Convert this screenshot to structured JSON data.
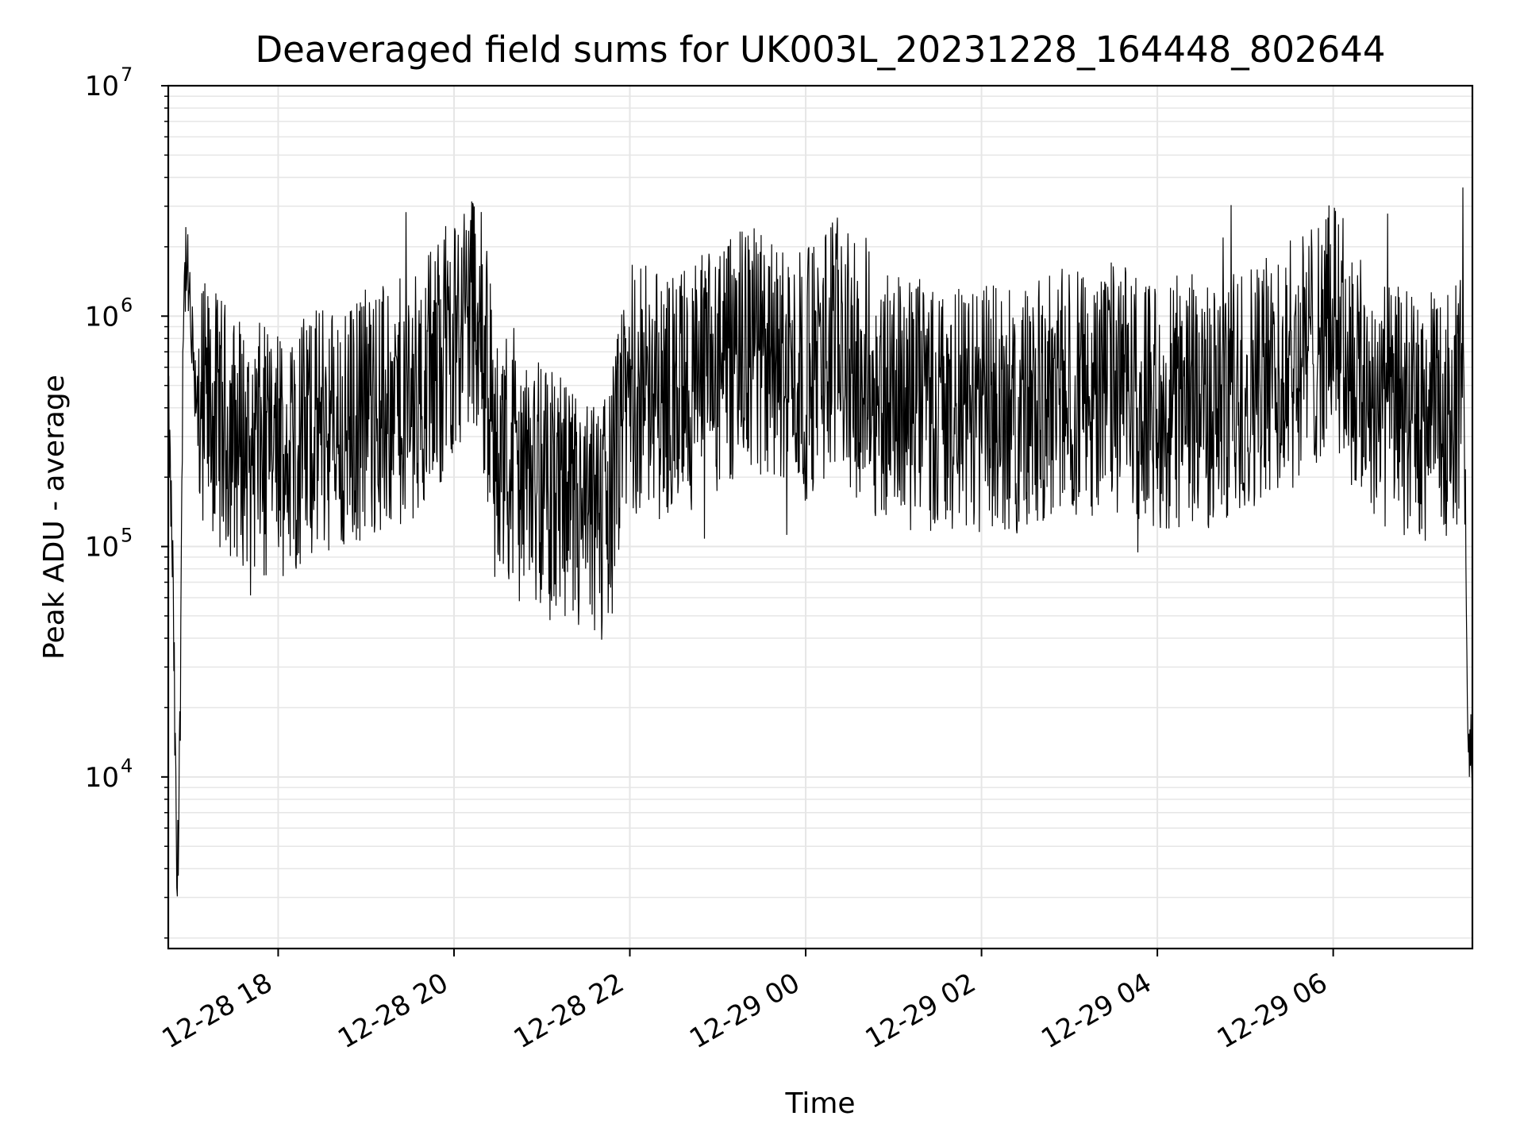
{
  "chart_data": {
    "type": "line",
    "title": "Deaveraged field sums for UK003L_20231228_164448_802644",
    "xlabel": "Time",
    "ylabel": "Peak ADU - average",
    "y_scale": "log",
    "ylim": [
      1800,
      10000000
    ],
    "xlim": [
      "2023-12-28 16:45",
      "2023-12-29 07:35"
    ],
    "grid": true,
    "grid_which": "both",
    "line_color": "#000000",
    "grid_color": "#e6e6e6",
    "x_ticks": [
      {
        "value": "2023-12-28 18:00",
        "label": "12-28 18"
      },
      {
        "value": "2023-12-28 20:00",
        "label": "12-28 20"
      },
      {
        "value": "2023-12-28 22:00",
        "label": "12-28 22"
      },
      {
        "value": "2023-12-29 00:00",
        "label": "12-29 00"
      },
      {
        "value": "2023-12-29 02:00",
        "label": "12-29 02"
      },
      {
        "value": "2023-12-29 04:00",
        "label": "12-29 04"
      },
      {
        "value": "2023-12-29 06:00",
        "label": "12-29 06"
      }
    ],
    "y_ticks": [
      {
        "value": 10000,
        "base": "10",
        "exp": "4"
      },
      {
        "value": 100000,
        "base": "10",
        "exp": "5"
      },
      {
        "value": 1000000,
        "base": "10",
        "exp": "6"
      },
      {
        "value": 10000000,
        "base": "10",
        "exp": "7"
      }
    ],
    "series": [
      {
        "x": [
          "2023-12-28 16:45",
          "2023-12-28 16:48",
          "2023-12-28 16:51",
          "2023-12-28 16:53",
          "2023-12-28 16:55",
          "2023-12-28 16:57",
          "2023-12-28 16:59",
          "2023-12-28 17:02",
          "2023-12-28 17:05",
          "2023-12-28 17:10",
          "2023-12-28 17:20",
          "2023-12-28 17:30",
          "2023-12-28 17:40",
          "2023-12-28 17:50",
          "2023-12-28 18:00",
          "2023-12-28 18:15",
          "2023-12-28 18:30",
          "2023-12-28 18:45",
          "2023-12-28 19:00",
          "2023-12-28 19:15",
          "2023-12-28 19:30",
          "2023-12-28 19:45",
          "2023-12-28 20:00",
          "2023-12-28 20:15",
          "2023-12-28 20:30",
          "2023-12-28 20:45",
          "2023-12-28 21:00",
          "2023-12-28 21:15",
          "2023-12-28 21:30",
          "2023-12-28 21:45",
          "2023-12-28 22:00",
          "2023-12-28 22:20",
          "2023-12-28 22:40",
          "2023-12-28 23:00",
          "2023-12-28 23:20",
          "2023-12-28 23:40",
          "2023-12-28 23:50",
          "2023-12-29 00:00",
          "2023-12-29 00:20",
          "2023-12-29 00:40",
          "2023-12-29 01:00",
          "2023-12-29 01:30",
          "2023-12-29 02:00",
          "2023-12-29 02:30",
          "2023-12-29 03:00",
          "2023-12-29 03:30",
          "2023-12-29 04:00",
          "2023-12-29 04:30",
          "2023-12-29 05:00",
          "2023-12-29 05:30",
          "2023-12-29 05:50",
          "2023-12-29 06:00",
          "2023-12-29 06:20",
          "2023-12-29 06:40",
          "2023-12-29 07:00",
          "2023-12-29 07:15",
          "2023-12-29 07:22",
          "2023-12-29 07:26",
          "2023-12-29 07:29",
          "2023-12-29 07:32",
          "2023-12-29 07:35"
        ],
        "y": [
          400000,
          80000,
          3000,
          15000,
          900000,
          1800000,
          1200000,
          600000,
          450000,
          400000,
          350000,
          300000,
          280000,
          260000,
          250000,
          280000,
          350000,
          300000,
          400000,
          380000,
          450000,
          550000,
          900000,
          1200000,
          250000,
          200000,
          180000,
          150000,
          120000,
          140000,
          500000,
          450000,
          500000,
          550000,
          700000,
          650000,
          600000,
          550000,
          800000,
          500000,
          450000,
          400000,
          380000,
          400000,
          450000,
          500000,
          420000,
          380000,
          500000,
          600000,
          800000,
          1000000,
          500000,
          400000,
          350000,
          380000,
          420000,
          450000,
          600000,
          10000,
          12000
        ],
        "noise_amplitude_decades": 0.55,
        "dense_samples": 2600
      }
    ]
  }
}
